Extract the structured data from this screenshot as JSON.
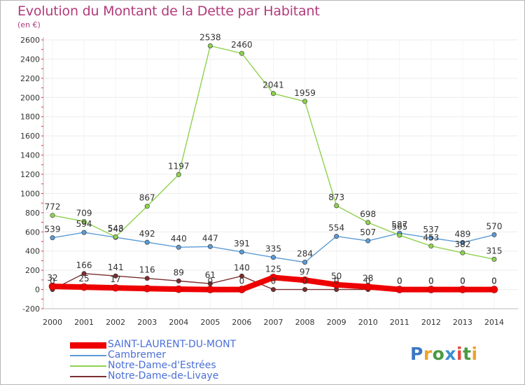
{
  "title": "Evolution du Montant de la Dette par Habitant",
  "subtitle": "(en €)",
  "logo": {
    "text": "Proxiti",
    "letters": [
      "P",
      "r",
      "o",
      "x",
      "i",
      "t",
      "i"
    ]
  },
  "colors": {
    "title": "#b33a7a",
    "axis": "#555555",
    "grid": "#eaeaea"
  },
  "chart_data": {
    "type": "line",
    "x": [
      2000,
      2001,
      2002,
      2003,
      2004,
      2005,
      2006,
      2007,
      2008,
      2009,
      2010,
      2011,
      2012,
      2013,
      2014
    ],
    "ylim": [
      -200,
      2600
    ],
    "yticks": [
      -200,
      0,
      200,
      400,
      600,
      800,
      1000,
      1200,
      1400,
      1600,
      1800,
      2000,
      2200,
      2400,
      2600
    ],
    "legend_position": "bottom-left",
    "series": [
      {
        "name": "SAINT-LAURENT-DU-MONT",
        "color": "#ee0000",
        "label_color": "#4a6fd8",
        "width": 8,
        "values": [
          32,
          25,
          17,
          10,
          3,
          0,
          0,
          125,
          97,
          50,
          28,
          0,
          0,
          0,
          0
        ],
        "labels": [
          "32",
          "25",
          "17",
          "",
          "",
          "0",
          "0",
          "125",
          "97",
          "50",
          "28",
          "0",
          "0",
          "0",
          "0"
        ]
      },
      {
        "name": "Cambremer",
        "color": "#5b9bd5",
        "label_color": "#5b9bd5",
        "width": 1.4,
        "values": [
          539,
          594,
          543,
          492,
          440,
          447,
          391,
          335,
          284,
          554,
          507,
          587,
          537,
          489,
          570
        ],
        "labels": [
          "539",
          "594",
          "543",
          "492",
          "440",
          "447",
          "391",
          "335",
          "284",
          "554",
          "507",
          "587",
          "537",
          "489",
          "570"
        ]
      },
      {
        "name": "Notre-Dame-d'Estrées",
        "color": "#8fd14f",
        "label_color": "#8fd14f",
        "width": 1.4,
        "values": [
          772,
          709,
          548,
          867,
          1197,
          2538,
          2460,
          2041,
          1959,
          873,
          698,
          565,
          453,
          382,
          315
        ],
        "labels": [
          "772",
          "709",
          "548",
          "867",
          "1197",
          "2538",
          "2460",
          "2041",
          "1959",
          "873",
          "698",
          "565",
          "453",
          "382",
          "315"
        ]
      },
      {
        "name": "Notre-Dame-de-Livaye",
        "color": "#7a2e2e",
        "label_color": "#7a2e2e",
        "width": 1.4,
        "values": [
          0,
          166,
          141,
          116,
          89,
          61,
          140,
          0,
          0,
          0,
          0,
          0,
          0,
          0,
          0
        ],
        "labels": [
          "0",
          "166",
          "141",
          "116",
          "89",
          "61",
          "140",
          "0",
          "0",
          "0",
          "0",
          "0",
          "0",
          "0",
          "0"
        ]
      }
    ]
  }
}
